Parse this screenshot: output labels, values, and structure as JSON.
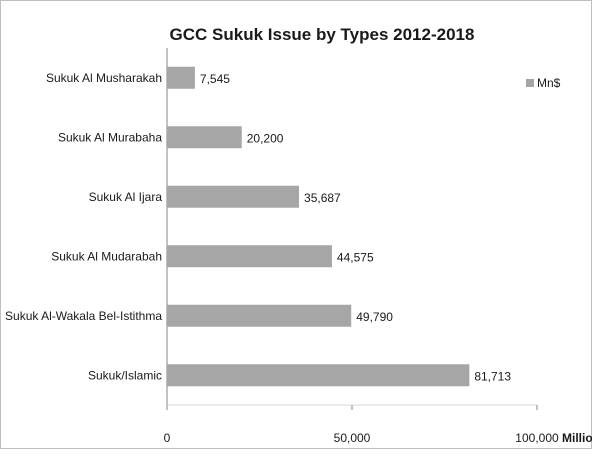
{
  "chart_data": {
    "type": "bar",
    "orientation": "horizontal",
    "title": "GCC Sukuk Issue by Types 2012-2018",
    "categories": [
      "Sukuk Al Musharakah",
      "Sukuk Al Murabaha",
      "Sukuk Al Ijara",
      "Sukuk Al Mudarabah",
      "Sukuk Al-Wakala Bel-Istithma",
      "Sukuk/Islamic"
    ],
    "series": [
      {
        "name": "Mn$",
        "values": [
          7545,
          20200,
          35687,
          44575,
          49790,
          81713
        ]
      }
    ],
    "value_labels": [
      "7,545",
      "20,200",
      "35,687",
      "44,575",
      "49,790",
      "81,713"
    ],
    "xlim": [
      0,
      100000
    ],
    "xticks": [
      0,
      50000,
      100000
    ],
    "xtick_labels": [
      "0",
      "50,000",
      "100,000"
    ],
    "x_unit_label": "Million",
    "legend_position": "top-right",
    "grid": false,
    "colors": {
      "bar": "#a6a6a6",
      "frame": "#bfbfbf",
      "axis": "#868686"
    }
  }
}
